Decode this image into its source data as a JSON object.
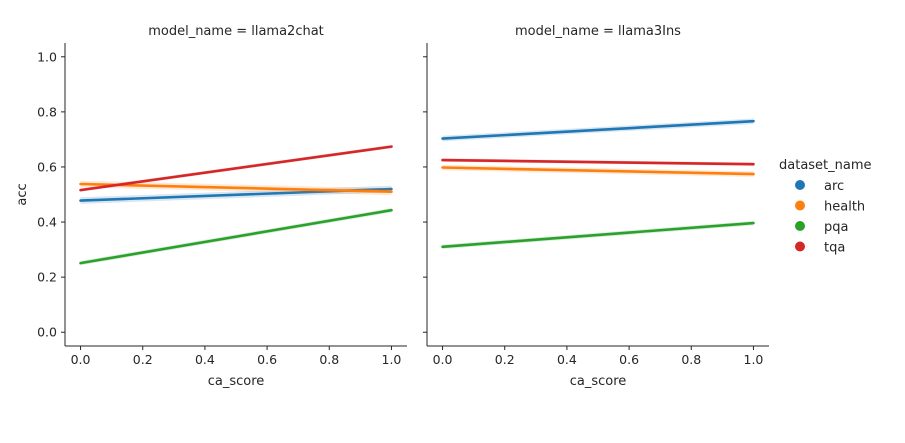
{
  "chart_data": {
    "type": "line",
    "legend": {
      "title": "dataset_name",
      "placement": "right",
      "entries": [
        {
          "name": "arc",
          "color": "#1f77b4"
        },
        {
          "name": "health",
          "color": "#ff7f0e"
        },
        {
          "name": "pqa",
          "color": "#2ca02c"
        },
        {
          "name": "tqa",
          "color": "#d62728"
        }
      ]
    },
    "xlim": [
      -0.05,
      1.05
    ],
    "ylim": [
      -0.05,
      1.05
    ],
    "x_ticks": [
      0.0,
      0.2,
      0.4,
      0.6,
      0.8,
      1.0
    ],
    "x_tick_labels": [
      "0.0",
      "0.2",
      "0.4",
      "0.6",
      "0.8",
      "1.0"
    ],
    "y_ticks": [
      0.0,
      0.2,
      0.4,
      0.6,
      0.8,
      1.0
    ],
    "y_tick_labels": [
      "0.0",
      "0.2",
      "0.4",
      "0.6",
      "0.8",
      "1.0"
    ],
    "grid": false,
    "panels": [
      {
        "title": "model_name = llama2chat",
        "xlabel": "ca_score",
        "ylabel": "acc",
        "series": [
          {
            "name": "arc",
            "x": [
              0,
              1
            ],
            "y": [
              0.478,
              0.52
            ],
            "ci": 0.012
          },
          {
            "name": "health",
            "x": [
              0,
              1
            ],
            "y": [
              0.538,
              0.51
            ],
            "ci": 0.012
          },
          {
            "name": "pqa",
            "x": [
              0,
              1
            ],
            "y": [
              0.251,
              0.443
            ],
            "ci": 0.008
          },
          {
            "name": "tqa",
            "x": [
              0,
              1
            ],
            "y": [
              0.516,
              0.674
            ],
            "ci": 0.006
          }
        ]
      },
      {
        "title": "model_name = llama3Ins",
        "xlabel": "ca_score",
        "ylabel": "",
        "series": [
          {
            "name": "arc",
            "x": [
              0,
              1
            ],
            "y": [
              0.703,
              0.766
            ],
            "ci": 0.01
          },
          {
            "name": "health",
            "x": [
              0,
              1
            ],
            "y": [
              0.598,
              0.574
            ],
            "ci": 0.01
          },
          {
            "name": "pqa",
            "x": [
              0,
              1
            ],
            "y": [
              0.31,
              0.396
            ],
            "ci": 0.008
          },
          {
            "name": "tqa",
            "x": [
              0,
              1
            ],
            "y": [
              0.625,
              0.61
            ],
            "ci": 0.006
          }
        ]
      }
    ]
  }
}
